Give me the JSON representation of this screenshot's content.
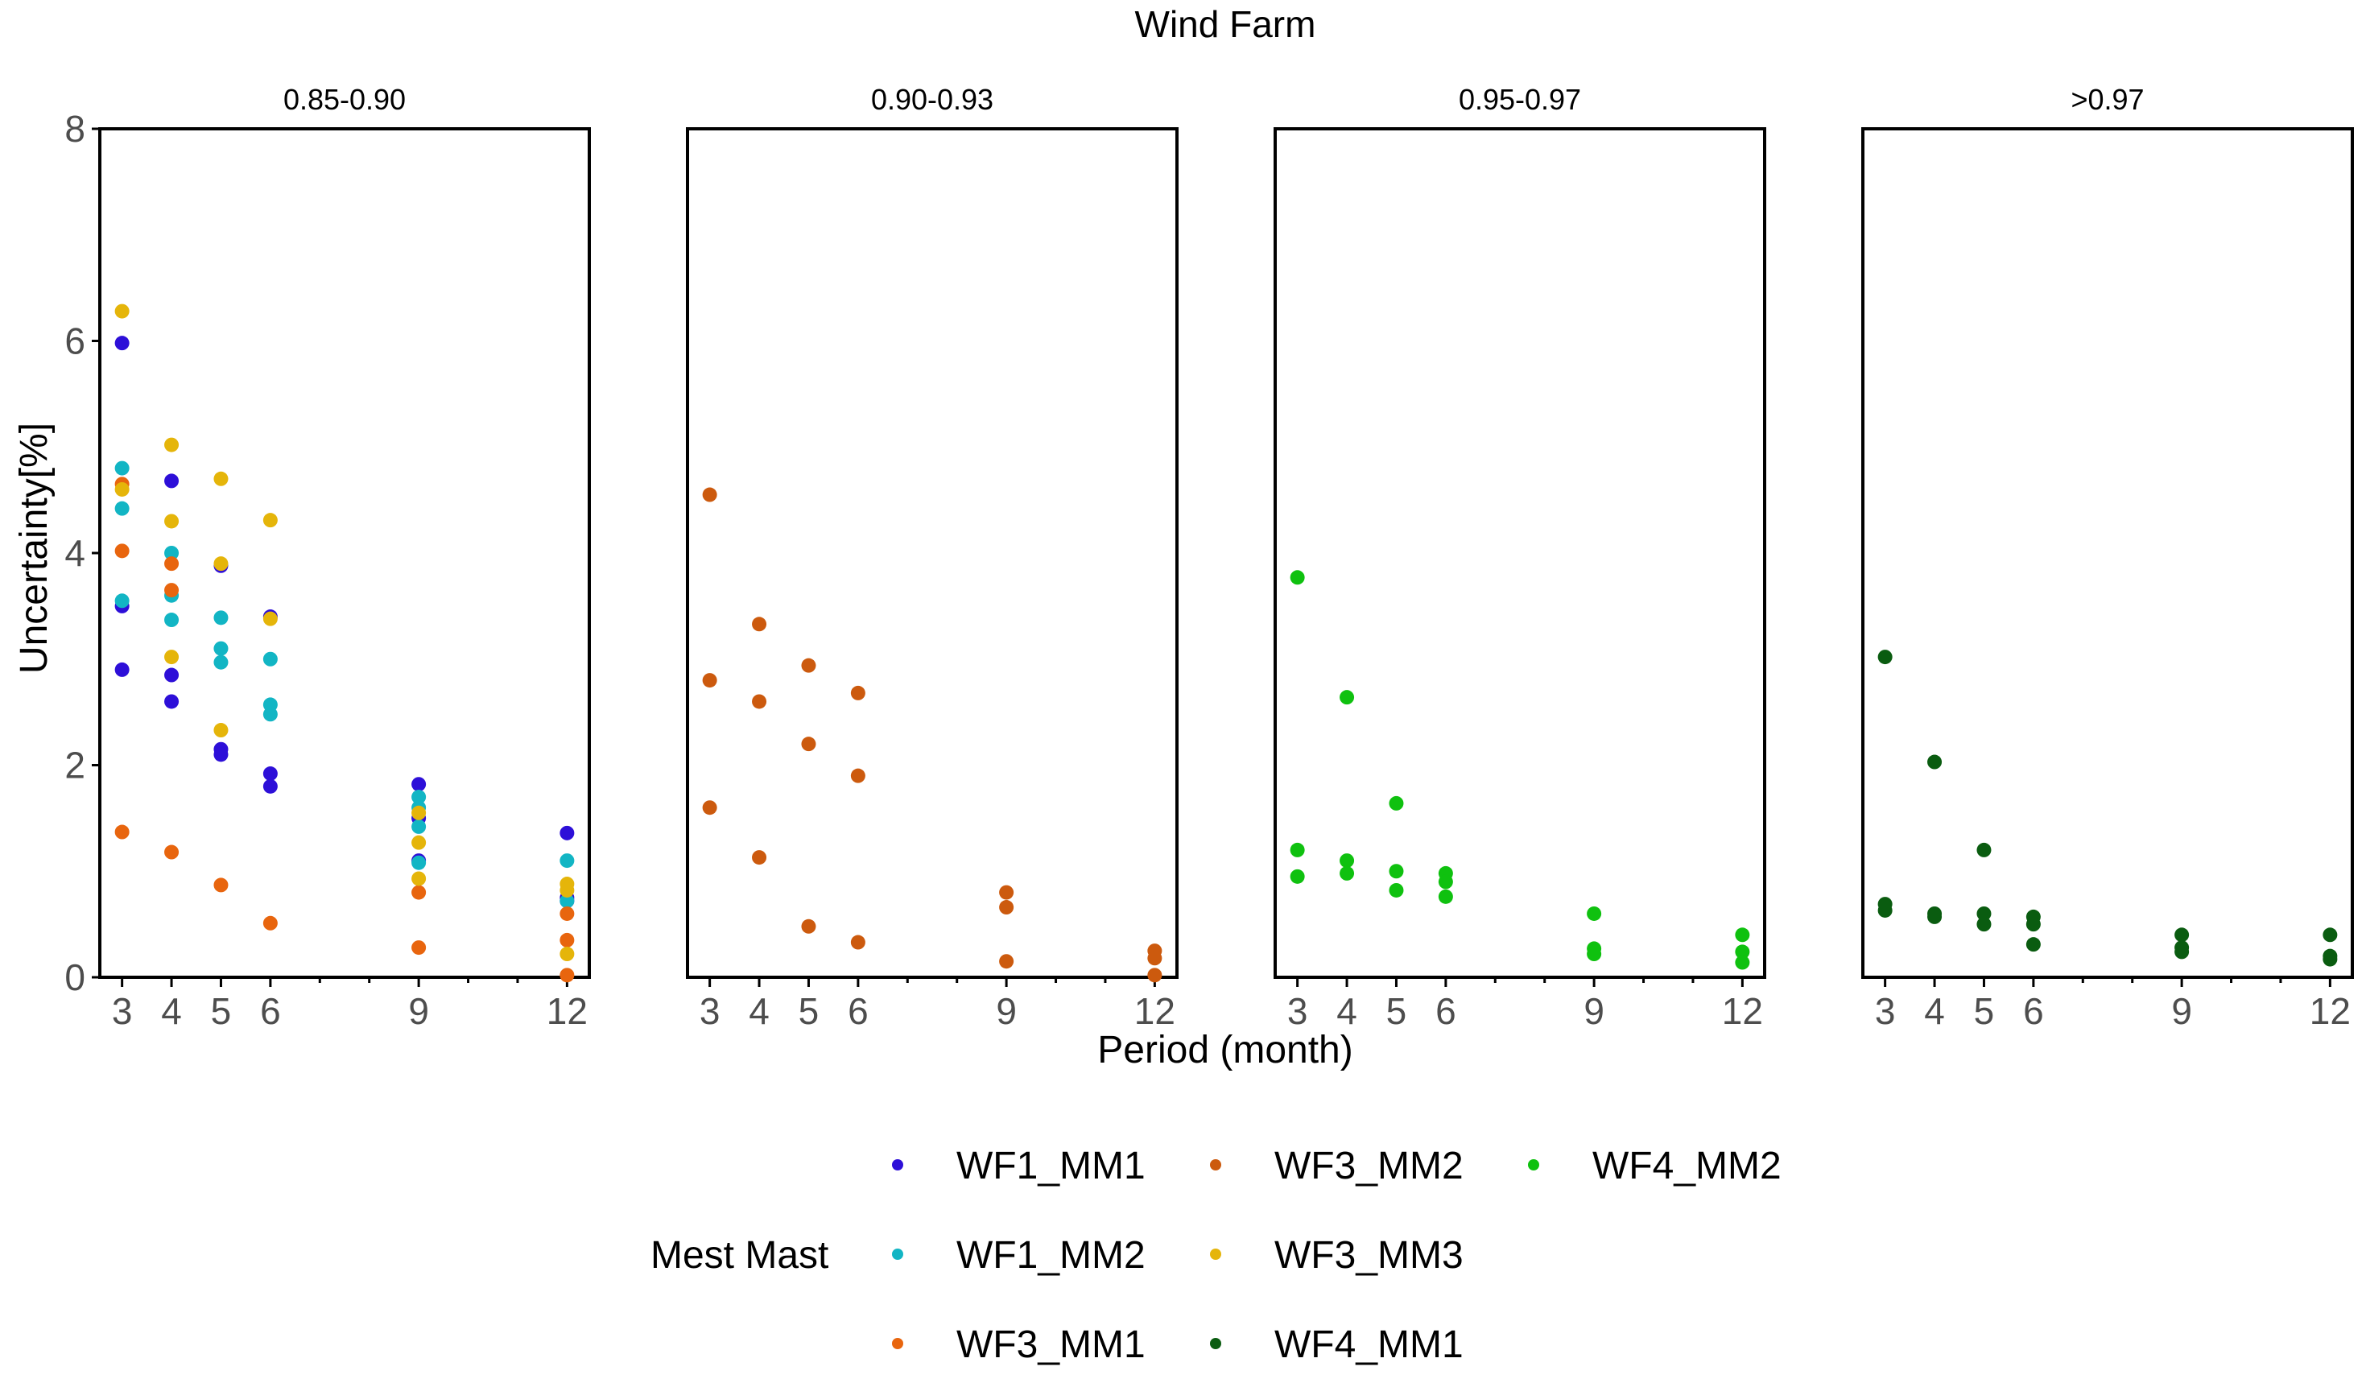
{
  "chart_data": {
    "type": "scatter",
    "title": "Wind Farm",
    "xlabel": "Period (month)",
    "ylabel": "Uncertainty[%]",
    "xlim": [
      2.55,
      12.45
    ],
    "ylim": [
      0,
      8
    ],
    "x_ticks": [
      3,
      4,
      5,
      6,
      9,
      12
    ],
    "x_minor_ticks": [
      7,
      8,
      10,
      11
    ],
    "y_ticks": [
      0,
      2,
      4,
      6,
      8
    ],
    "grid": false,
    "legend": {
      "title": "Mest Mast",
      "position": "bottom"
    },
    "series": [
      {
        "name": "WF1_MM1",
        "color": "#2d0fd8",
        "panel": 0,
        "points": [
          [
            3,
            5.98
          ],
          [
            3,
            3.5
          ],
          [
            3,
            2.9
          ],
          [
            4,
            4.68
          ],
          [
            4,
            2.85
          ],
          [
            4,
            2.6
          ],
          [
            5,
            3.88
          ],
          [
            5,
            2.15
          ],
          [
            5,
            2.1
          ],
          [
            6,
            3.4
          ],
          [
            6,
            1.92
          ],
          [
            6,
            1.8
          ],
          [
            9,
            1.82
          ],
          [
            9,
            1.5
          ],
          [
            9,
            1.1
          ],
          [
            12,
            1.36
          ],
          [
            12,
            0.75
          ],
          [
            12,
            0.72
          ]
        ]
      },
      {
        "name": "WF1_MM2",
        "color": "#12b5c4",
        "panel": 0,
        "points": [
          [
            3,
            4.8
          ],
          [
            3,
            4.42
          ],
          [
            3,
            3.55
          ],
          [
            4,
            4.0
          ],
          [
            4,
            3.6
          ],
          [
            4,
            3.37
          ],
          [
            5,
            3.39
          ],
          [
            5,
            3.1
          ],
          [
            5,
            2.97
          ],
          [
            6,
            3.0
          ],
          [
            6,
            2.57
          ],
          [
            6,
            2.48
          ],
          [
            9,
            1.7
          ],
          [
            9,
            1.6
          ],
          [
            9,
            1.42
          ],
          [
            9,
            1.08
          ],
          [
            12,
            1.1
          ],
          [
            12,
            0.72
          ]
        ]
      },
      {
        "name": "WF3_MM1",
        "color": "#e8650e",
        "panel": 0,
        "points": [
          [
            3,
            4.65
          ],
          [
            3,
            4.02
          ],
          [
            3,
            1.37
          ],
          [
            4,
            3.9
          ],
          [
            4,
            3.65
          ],
          [
            4,
            1.18
          ],
          [
            5,
            0.87
          ],
          [
            6,
            0.51
          ],
          [
            9,
            0.8
          ],
          [
            9,
            0.28
          ],
          [
            12,
            0.6
          ],
          [
            12,
            0.35
          ],
          [
            12,
            0.02
          ]
        ]
      },
      {
        "name": "WF3_MM3",
        "color": "#e5b50a",
        "panel": 0,
        "points": [
          [
            3,
            6.28
          ],
          [
            3,
            4.6
          ],
          [
            4,
            5.02
          ],
          [
            4,
            4.3
          ],
          [
            4,
            3.02
          ],
          [
            5,
            4.7
          ],
          [
            5,
            3.9
          ],
          [
            5,
            2.33
          ],
          [
            6,
            4.31
          ],
          [
            6,
            3.38
          ],
          [
            9,
            1.55
          ],
          [
            9,
            1.27
          ],
          [
            9,
            0.93
          ],
          [
            12,
            0.88
          ],
          [
            12,
            0.82
          ],
          [
            12,
            0.22
          ]
        ]
      },
      {
        "name": "WF3_MM2",
        "color": "#cc5a0e",
        "panel": 1,
        "points": [
          [
            3,
            4.55
          ],
          [
            3,
            2.8
          ],
          [
            3,
            1.6
          ],
          [
            4,
            3.33
          ],
          [
            4,
            2.6
          ],
          [
            4,
            1.13
          ],
          [
            5,
            2.94
          ],
          [
            5,
            2.2
          ],
          [
            5,
            0.48
          ],
          [
            6,
            2.68
          ],
          [
            6,
            1.9
          ],
          [
            6,
            0.33
          ],
          [
            9,
            0.8
          ],
          [
            9,
            0.66
          ],
          [
            9,
            0.15
          ],
          [
            12,
            0.25
          ],
          [
            12,
            0.18
          ],
          [
            12,
            0.02
          ]
        ]
      },
      {
        "name": "WF4_MM2",
        "color": "#0fc10f",
        "panel": 2,
        "points": [
          [
            3,
            3.77
          ],
          [
            3,
            1.2
          ],
          [
            3,
            0.95
          ],
          [
            4,
            2.64
          ],
          [
            4,
            1.1
          ],
          [
            4,
            0.98
          ],
          [
            5,
            1.64
          ],
          [
            5,
            1.0
          ],
          [
            5,
            0.82
          ],
          [
            6,
            0.98
          ],
          [
            6,
            0.9
          ],
          [
            6,
            0.76
          ],
          [
            9,
            0.6
          ],
          [
            9,
            0.27
          ],
          [
            9,
            0.22
          ],
          [
            12,
            0.4
          ],
          [
            12,
            0.24
          ],
          [
            12,
            0.14
          ]
        ]
      },
      {
        "name": "WF4_MM1",
        "color": "#0a5c10",
        "panel": 3,
        "points": [
          [
            3,
            3.02
          ],
          [
            3,
            0.69
          ],
          [
            3,
            0.63
          ],
          [
            4,
            2.03
          ],
          [
            4,
            0.6
          ],
          [
            4,
            0.57
          ],
          [
            5,
            1.2
          ],
          [
            5,
            0.6
          ],
          [
            5,
            0.5
          ],
          [
            6,
            0.57
          ],
          [
            6,
            0.5
          ],
          [
            6,
            0.31
          ],
          [
            9,
            0.4
          ],
          [
            9,
            0.28
          ],
          [
            9,
            0.24
          ],
          [
            12,
            0.4
          ],
          [
            12,
            0.2
          ],
          [
            12,
            0.17
          ]
        ]
      }
    ],
    "panels": [
      {
        "label": "0.85-0.90",
        "series": [
          "WF1_MM1",
          "WF1_MM2",
          "WF3_MM1",
          "WF3_MM3"
        ]
      },
      {
        "label": "0.90-0.93",
        "series": [
          "WF3_MM2"
        ]
      },
      {
        "label": "0.95-0.97",
        "series": [
          "WF4_MM2"
        ]
      },
      {
        "label": ">0.97",
        "series": [
          "WF4_MM1"
        ]
      }
    ],
    "legend_order": [
      [
        "WF1_MM1",
        "WF3_MM2",
        "WF4_MM2"
      ],
      [
        "WF1_MM2",
        "WF3_MM3"
      ],
      [
        "WF3_MM1",
        "WF4_MM1"
      ]
    ]
  }
}
